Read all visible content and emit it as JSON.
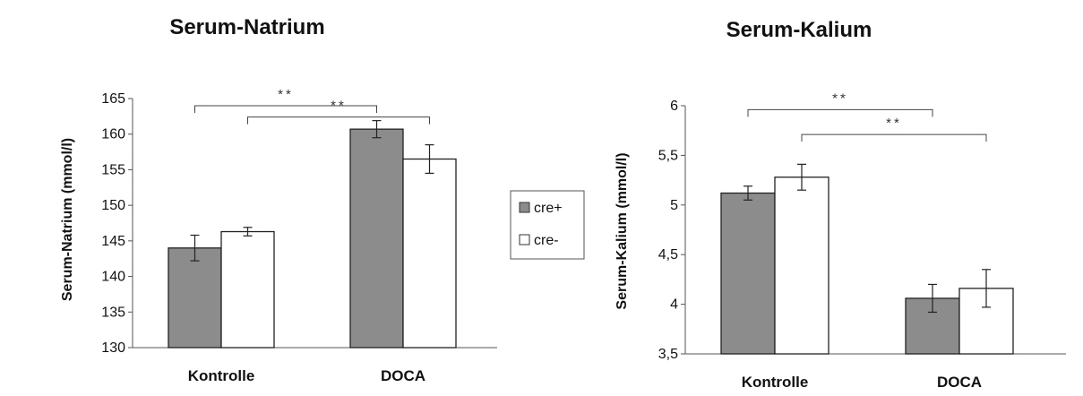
{
  "chart_data": [
    {
      "type": "bar",
      "title": "Serum-Natrium",
      "ylabel": "Serum-Natrium (mmol/l)",
      "categories": [
        "Kontrolle",
        "DOCA"
      ],
      "ylim": [
        130,
        165
      ],
      "yticks": [
        "130",
        "135",
        "140",
        "145",
        "150",
        "155",
        "160",
        "165"
      ],
      "grid": false,
      "series": [
        {
          "name": "cre+",
          "values": [
            144,
            160.7
          ],
          "errors": [
            1.8,
            1.2
          ],
          "color": "#8c8c8c"
        },
        {
          "name": "cre-",
          "values": [
            146.3,
            156.5
          ],
          "errors": [
            0.6,
            2.0
          ],
          "color": "#ffffff"
        }
      ],
      "significance": [
        {
          "label": "**",
          "from": {
            "category": 0,
            "series": 0
          },
          "to": {
            "category": 1,
            "series": 0
          },
          "level": 164
        },
        {
          "label": "**",
          "from": {
            "category": 0,
            "series": 1
          },
          "to": {
            "category": 1,
            "series": 1
          },
          "level": 162.4
        }
      ]
    },
    {
      "type": "bar",
      "title": "Serum-Kalium",
      "ylabel": "Serum-Kalium (mmol/l)",
      "categories": [
        "Kontrolle",
        "DOCA"
      ],
      "ylim": [
        3.5,
        6
      ],
      "yticks": [
        "3,5",
        "4",
        "4,5",
        "5",
        "5,5",
        "6"
      ],
      "grid": false,
      "series": [
        {
          "name": "cre+",
          "values": [
            5.12,
            4.06
          ],
          "errors": [
            0.07,
            0.14
          ],
          "color": "#8c8c8c"
        },
        {
          "name": "cre-",
          "values": [
            5.28,
            4.16
          ],
          "errors": [
            0.13,
            0.19
          ],
          "color": "#ffffff"
        }
      ],
      "significance": [
        {
          "label": "**",
          "from": {
            "category": 0,
            "series": 0
          },
          "to": {
            "category": 1,
            "series": 0
          },
          "level": 5.96
        },
        {
          "label": "**",
          "from": {
            "category": 0,
            "series": 1
          },
          "to": {
            "category": 1,
            "series": 1
          },
          "level": 5.71
        }
      ]
    }
  ],
  "legend": {
    "placement": "between-charts",
    "items": [
      {
        "label": "cre+",
        "color": "#8c8c8c"
      },
      {
        "label": "cre-",
        "color": "#ffffff"
      }
    ]
  }
}
